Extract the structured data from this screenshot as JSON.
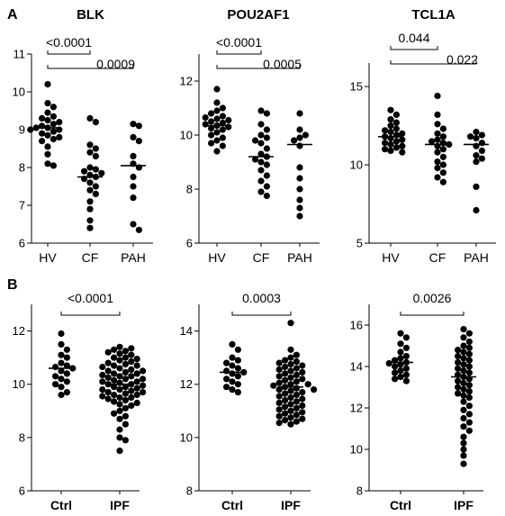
{
  "panel_labels": [
    "A",
    "B"
  ],
  "chart_data": [
    {
      "type": "scatter",
      "panel": "A",
      "title": "BLK",
      "categories": [
        "HV",
        "CF",
        "PAH"
      ],
      "ylim": [
        6,
        11
      ],
      "yticks": [
        "6",
        "7",
        "8",
        "9",
        "10",
        "11"
      ],
      "series": [
        {
          "values": [
            10.2,
            9.7,
            9.6,
            9.45,
            9.35,
            9.3,
            9.25,
            9.2,
            9.15,
            9.1,
            9.05,
            9.05,
            9.0,
            9.0,
            8.95,
            8.9,
            8.85,
            8.8,
            8.75,
            8.7,
            8.55,
            8.35,
            8.1,
            8.05
          ]
        },
        {
          "values": [
            9.3,
            9.2,
            8.6,
            8.5,
            8.4,
            8.3,
            8.0,
            7.95,
            7.9,
            7.85,
            7.8,
            7.75,
            7.7,
            7.6,
            7.5,
            7.4,
            7.3,
            7.1,
            6.9,
            6.6,
            6.4
          ]
        },
        {
          "values": [
            9.15,
            9.1,
            8.8,
            8.7,
            8.3,
            8.1,
            8.0,
            7.75,
            7.5,
            7.2,
            6.5,
            6.35
          ]
        }
      ],
      "medians": [
        9.05,
        7.75,
        8.05
      ],
      "comparisons": [
        {
          "from": "HV",
          "to": "CF",
          "label": "<0.0001"
        },
        {
          "from": "HV",
          "to": "PAH",
          "label": "0.0009"
        }
      ]
    },
    {
      "type": "scatter",
      "panel": "A",
      "title": "POU2AF1",
      "categories": [
        "HV",
        "CF",
        "PAH"
      ],
      "ylim": [
        6,
        13
      ],
      "yticks": [
        "6",
        "8",
        "10",
        "12"
      ],
      "series": [
        {
          "values": [
            11.7,
            11.2,
            11.0,
            10.9,
            10.8,
            10.7,
            10.65,
            10.6,
            10.55,
            10.5,
            10.45,
            10.4,
            10.35,
            10.3,
            10.25,
            10.2,
            10.1,
            10.0,
            9.9,
            9.8,
            9.7,
            9.6,
            9.4
          ]
        },
        {
          "values": [
            10.9,
            10.8,
            10.4,
            10.2,
            10.0,
            9.9,
            9.8,
            9.7,
            9.5,
            9.3,
            9.2,
            9.1,
            9.0,
            8.9,
            8.7,
            8.5,
            8.3,
            8.1,
            7.9,
            7.75
          ]
        },
        {
          "values": [
            10.8,
            10.2,
            10.0,
            9.9,
            9.8,
            9.6,
            8.8,
            8.4,
            8.0,
            7.6,
            7.3,
            7.0
          ]
        }
      ],
      "medians": [
        10.35,
        9.2,
        9.65
      ],
      "comparisons": [
        {
          "from": "HV",
          "to": "CF",
          "label": "<0.0001"
        },
        {
          "from": "HV",
          "to": "PAH",
          "label": "0.0005"
        }
      ]
    },
    {
      "type": "scatter",
      "panel": "A",
      "title": "TCL1A",
      "categories": [
        "HV",
        "CF",
        "PAH"
      ],
      "ylim": [
        5,
        16.5
      ],
      "yticks": [
        "5",
        "10",
        "15"
      ],
      "series": [
        {
          "values": [
            13.5,
            13.2,
            12.9,
            12.7,
            12.5,
            12.3,
            12.2,
            12.1,
            12.0,
            11.9,
            11.8,
            11.7,
            11.6,
            11.5,
            11.4,
            11.3,
            11.2,
            11.1,
            11.0,
            10.9,
            10.8
          ]
        },
        {
          "values": [
            14.4,
            13.2,
            12.6,
            12.3,
            12.0,
            11.8,
            11.6,
            11.5,
            11.4,
            11.3,
            11.2,
            11.0,
            10.8,
            10.5,
            10.2,
            10.0,
            9.8,
            9.5,
            9.2,
            8.9
          ]
        },
        {
          "values": [
            12.1,
            11.9,
            11.8,
            11.7,
            11.4,
            11.2,
            10.9,
            10.6,
            10.4,
            10.2,
            8.6,
            7.1
          ]
        }
      ],
      "medians": [
        11.8,
        11.3,
        11.3
      ],
      "comparisons": [
        {
          "from": "HV",
          "to": "CF",
          "label": "0.044"
        },
        {
          "from": "HV",
          "to": "PAH",
          "label": "0.022"
        }
      ]
    },
    {
      "type": "scatter",
      "panel": "B",
      "title": "",
      "categories": [
        "Ctrl",
        "IPF"
      ],
      "ylim": [
        6,
        13
      ],
      "yticks": [
        "6",
        "8",
        "10",
        "12"
      ],
      "series": [
        {
          "values": [
            11.9,
            11.5,
            11.3,
            11.1,
            11.0,
            10.8,
            10.7,
            10.65,
            10.6,
            10.5,
            10.4,
            10.3,
            10.2,
            10.1,
            10.0,
            9.9,
            9.7,
            9.6
          ]
        },
        {
          "values": [
            11.4,
            11.35,
            11.3,
            11.25,
            11.2,
            11.15,
            11.1,
            11.0,
            11.0,
            10.95,
            10.9,
            10.85,
            10.8,
            10.75,
            10.7,
            10.7,
            10.65,
            10.6,
            10.55,
            10.5,
            10.5,
            10.45,
            10.4,
            10.4,
            10.35,
            10.3,
            10.3,
            10.25,
            10.2,
            10.2,
            10.15,
            10.1,
            10.1,
            10.05,
            10.0,
            10.0,
            9.95,
            9.9,
            9.9,
            9.85,
            9.8,
            9.8,
            9.75,
            9.7,
            9.7,
            9.65,
            9.6,
            9.6,
            9.55,
            9.5,
            9.5,
            9.45,
            9.4,
            9.35,
            9.3,
            9.25,
            9.2,
            9.1,
            9.0,
            8.9,
            8.8,
            8.7,
            8.5,
            8.3,
            8.0,
            7.9,
            7.5
          ]
        }
      ],
      "medians": [
        10.6,
        10.0
      ],
      "comparisons": [
        {
          "from": "Ctrl",
          "to": "IPF",
          "label": "<0.0001"
        }
      ]
    },
    {
      "type": "scatter",
      "panel": "B",
      "title": "",
      "categories": [
        "Ctrl",
        "IPF"
      ],
      "ylim": [
        8,
        15
      ],
      "yticks": [
        "8",
        "10",
        "12",
        "14"
      ],
      "series": [
        {
          "values": [
            13.5,
            13.3,
            13.0,
            12.9,
            12.8,
            12.7,
            12.6,
            12.5,
            12.45,
            12.4,
            12.3,
            12.2,
            12.1,
            12.0,
            11.9,
            11.8,
            11.7
          ]
        },
        {
          "values": [
            14.3,
            13.3,
            13.1,
            13.0,
            12.9,
            12.85,
            12.8,
            12.75,
            12.7,
            12.65,
            12.6,
            12.55,
            12.5,
            12.45,
            12.4,
            12.35,
            12.3,
            12.25,
            12.2,
            12.15,
            12.1,
            12.05,
            12.0,
            12.0,
            11.95,
            11.9,
            11.85,
            11.8,
            11.8,
            11.75,
            11.7,
            11.65,
            11.6,
            11.55,
            11.5,
            11.45,
            11.4,
            11.35,
            11.3,
            11.25,
            11.2,
            11.15,
            11.1,
            11.05,
            11.0,
            10.95,
            10.9,
            10.85,
            10.8,
            10.75,
            10.7,
            10.65,
            10.6,
            10.55,
            10.5
          ]
        }
      ],
      "medians": [
        12.45,
        11.9
      ],
      "comparisons": [
        {
          "from": "Ctrl",
          "to": "IPF",
          "label": "0.0003"
        }
      ]
    },
    {
      "type": "scatter",
      "panel": "B",
      "title": "",
      "categories": [
        "Ctrl",
        "IPF"
      ],
      "ylim": [
        8,
        17
      ],
      "yticks": [
        "8",
        "10",
        "12",
        "14",
        "16"
      ],
      "series": [
        {
          "values": [
            15.6,
            15.4,
            15.1,
            14.9,
            14.7,
            14.5,
            14.4,
            14.3,
            14.2,
            14.15,
            14.1,
            14.0,
            13.9,
            13.8,
            13.7,
            13.6,
            13.5,
            13.4,
            13.3
          ]
        },
        {
          "values": [
            15.8,
            15.6,
            15.4,
            15.2,
            15.0,
            14.9,
            14.8,
            14.7,
            14.6,
            14.5,
            14.4,
            14.3,
            14.2,
            14.1,
            14.0,
            13.9,
            13.8,
            13.7,
            13.6,
            13.5,
            13.4,
            13.3,
            13.2,
            13.1,
            13.0,
            12.9,
            12.8,
            12.7,
            12.6,
            12.5,
            12.3,
            12.1,
            11.9,
            11.7,
            11.5,
            11.3,
            11.1,
            10.9,
            10.6,
            10.3,
            10.0,
            9.7,
            9.3
          ]
        }
      ],
      "medians": [
        14.2,
        13.5
      ],
      "comparisons": [
        {
          "from": "Ctrl",
          "to": "IPF",
          "label": "0.0026"
        }
      ]
    }
  ]
}
